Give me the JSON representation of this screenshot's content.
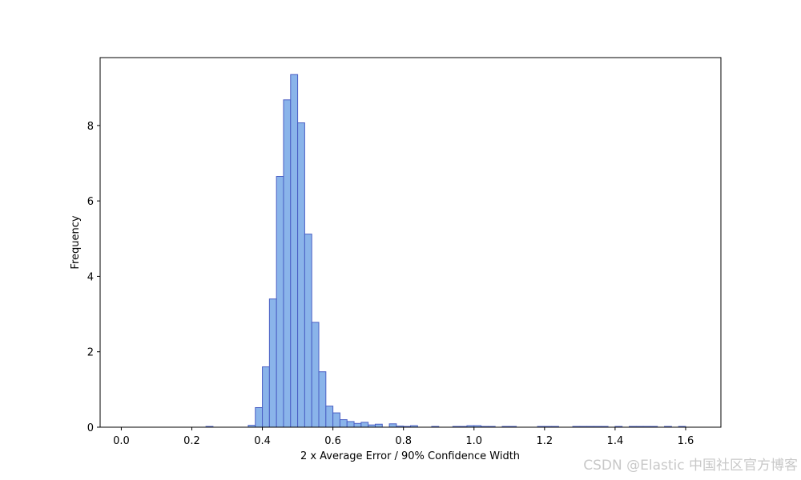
{
  "chart_data": {
    "type": "histogram",
    "xlabel": "2 x Average Error / 90% Confidence Width",
    "ylabel": "Frequency",
    "watermark": "CSDN @Elastic 中国社区官方博客",
    "color": "#8ab4ea",
    "edgecolor": "#4a5fc4",
    "bins": [
      0.02,
      0.04,
      0.06,
      0.08,
      0.1,
      0.12,
      0.14,
      0.16,
      0.18,
      0.2,
      0.22,
      0.24,
      0.26,
      0.28,
      0.3,
      0.32,
      0.34,
      0.36,
      0.38,
      0.4,
      0.42,
      0.44,
      0.46,
      0.48,
      0.5,
      0.52,
      0.54,
      0.56,
      0.58,
      0.6,
      0.62,
      0.64,
      0.66,
      0.68,
      0.7,
      0.72,
      0.74,
      0.76,
      0.78,
      0.8,
      0.82,
      0.84,
      0.86,
      0.88,
      0.9,
      0.92,
      0.94,
      0.96,
      0.98,
      1.0,
      1.02,
      1.04,
      1.06,
      1.08,
      1.1,
      1.12,
      1.14,
      1.16,
      1.18,
      1.2,
      1.22,
      1.24,
      1.26,
      1.28,
      1.3,
      1.32,
      1.34,
      1.36,
      1.38,
      1.4,
      1.42,
      1.44,
      1.46,
      1.48,
      1.5,
      1.52,
      1.54,
      1.56,
      1.58,
      1.6,
      1.62
    ],
    "values": [
      0,
      0,
      0,
      0,
      0,
      0,
      0,
      0,
      0,
      0,
      0,
      0.02,
      0,
      0,
      0,
      0,
      0,
      0.05,
      0.52,
      1.6,
      3.4,
      6.65,
      8.68,
      9.35,
      8.07,
      5.12,
      2.78,
      1.47,
      0.56,
      0.38,
      0.2,
      0.15,
      0.1,
      0.13,
      0.06,
      0.08,
      0,
      0.09,
      0.03,
      0.02,
      0.04,
      0,
      0,
      0.02,
      0,
      0,
      0.02,
      0.02,
      0.04,
      0.04,
      0.02,
      0.02,
      0,
      0.02,
      0.02,
      0,
      0,
      0,
      0.02,
      0.02,
      0.02,
      0,
      0,
      0.02,
      0.02,
      0.02,
      0.02,
      0.02,
      0,
      0.02,
      0,
      0.02,
      0.02,
      0.02,
      0.02,
      0,
      0.02,
      0,
      0.02,
      0
    ],
    "xlim": [
      -0.06,
      1.7
    ],
    "ylim": [
      0,
      9.8
    ],
    "xticks": [
      {
        "value": 0,
        "label": "0.0"
      },
      {
        "value": 0.2,
        "label": "0.2"
      },
      {
        "value": 0.4,
        "label": "0.4"
      },
      {
        "value": 0.6,
        "label": "0.6"
      },
      {
        "value": 0.8,
        "label": "0.8"
      },
      {
        "value": 1,
        "label": "1.0"
      },
      {
        "value": 1.2,
        "label": "1.2"
      },
      {
        "value": 1.4,
        "label": "1.4"
      },
      {
        "value": 1.6,
        "label": "1.6"
      }
    ],
    "yticks": [
      0,
      2,
      4,
      6,
      8
    ]
  }
}
